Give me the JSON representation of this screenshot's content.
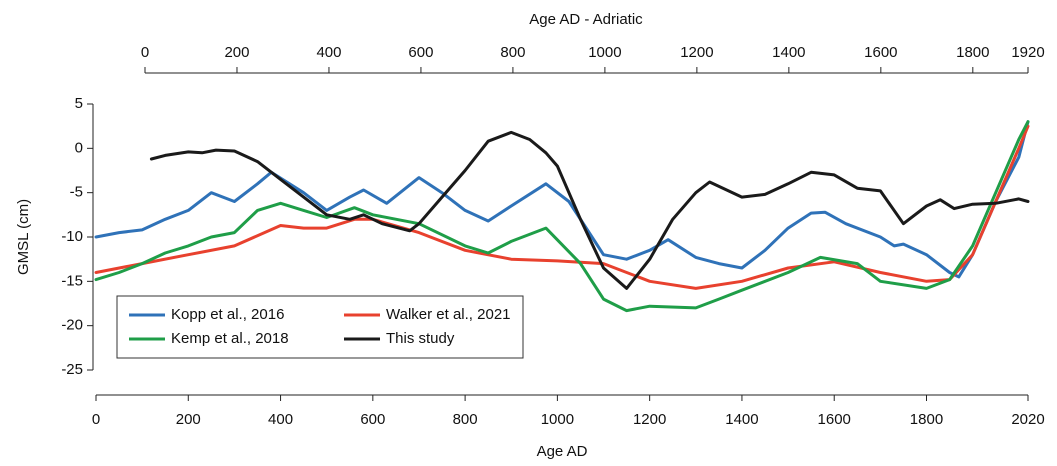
{
  "chart_data": {
    "type": "line",
    "title": "Age AD - Adriatic",
    "xlabel": "Age AD",
    "ylabel": "GMSL (cm)",
    "xlim": [
      0,
      2020
    ],
    "xticks": [
      0,
      200,
      400,
      600,
      800,
      1000,
      1200,
      1400,
      1600,
      1800,
      2020
    ],
    "x2lim": [
      0,
      1920
    ],
    "x2ticks": [
      0,
      200,
      400,
      600,
      800,
      1000,
      1200,
      1400,
      1600,
      1800,
      1920
    ],
    "ylim": [
      -25,
      5
    ],
    "yticks": [
      -25,
      -20,
      -15,
      -10,
      -5,
      0,
      5
    ],
    "legend": "lower left",
    "series": [
      {
        "name": "Kopp et al., 2016",
        "color": "#2f72b8",
        "x": [
          0,
          50,
          100,
          150,
          200,
          250,
          300,
          350,
          380,
          450,
          500,
          550,
          580,
          630,
          700,
          750,
          800,
          850,
          900,
          975,
          1025,
          1075,
          1100,
          1150,
          1200,
          1240,
          1300,
          1350,
          1400,
          1450,
          1500,
          1550,
          1580,
          1625,
          1700,
          1730,
          1750,
          1800,
          1850,
          1870,
          1900,
          1950,
          2000,
          2020
        ],
        "values": [
          -10,
          -9.5,
          -9.2,
          -8,
          -7,
          -5,
          -6,
          -4,
          -2.7,
          -5,
          -7,
          -5.5,
          -4.7,
          -6.2,
          -3.3,
          -5,
          -7,
          -8.2,
          -6.5,
          -4,
          -6,
          -10,
          -12,
          -12.5,
          -11.5,
          -10.3,
          -12.3,
          -13,
          -13.5,
          -11.5,
          -9,
          -7.3,
          -7.2,
          -8.5,
          -10,
          -11,
          -10.8,
          -12,
          -14,
          -14.5,
          -12,
          -6,
          -1,
          3
        ]
      },
      {
        "name": "Walker et al., 2021",
        "color": "#e8412e",
        "x": [
          0,
          100,
          200,
          300,
          400,
          450,
          500,
          560,
          600,
          700,
          800,
          900,
          1000,
          1100,
          1200,
          1300,
          1400,
          1500,
          1600,
          1700,
          1800,
          1850,
          1900,
          1950,
          2000,
          2020
        ],
        "values": [
          -14,
          -13,
          -12,
          -11,
          -8.7,
          -9,
          -9,
          -8,
          -8,
          -9.5,
          -11.5,
          -12.5,
          -12.7,
          -13,
          -15,
          -15.8,
          -15,
          -13.5,
          -12.8,
          -14,
          -15,
          -14.8,
          -12,
          -6,
          0,
          2.5
        ]
      },
      {
        "name": "Kemp et al., 2018",
        "color": "#1f9e48",
        "x": [
          0,
          50,
          100,
          150,
          200,
          250,
          300,
          350,
          400,
          450,
          500,
          560,
          600,
          700,
          800,
          850,
          900,
          975,
          1050,
          1100,
          1150,
          1200,
          1300,
          1350,
          1400,
          1500,
          1570,
          1650,
          1700,
          1800,
          1850,
          1900,
          1950,
          2000,
          2020
        ],
        "values": [
          -14.8,
          -14,
          -13,
          -11.8,
          -11,
          -10,
          -9.5,
          -7,
          -6.2,
          -7,
          -7.8,
          -6.7,
          -7.5,
          -8.5,
          -11,
          -11.8,
          -10.5,
          -9,
          -13,
          -17,
          -18.3,
          -17.8,
          -18,
          -17,
          -16,
          -14,
          -12.3,
          -13,
          -15,
          -15.8,
          -14.8,
          -11,
          -5,
          1,
          3
        ]
      },
      {
        "name": "This study",
        "color": "#1a1a1a",
        "x": [
          120,
          150,
          200,
          230,
          260,
          300,
          350,
          400,
          450,
          500,
          550,
          580,
          620,
          680,
          700,
          750,
          800,
          850,
          900,
          940,
          975,
          1000,
          1050,
          1100,
          1150,
          1200,
          1250,
          1300,
          1330,
          1400,
          1450,
          1500,
          1550,
          1600,
          1650,
          1700,
          1750,
          1800,
          1830,
          1860,
          1900,
          1950,
          2000,
          2020
        ],
        "values": [
          -1.2,
          -0.8,
          -0.4,
          -0.5,
          -0.2,
          -0.3,
          -1.5,
          -3.5,
          -5.5,
          -7.5,
          -8,
          -7.5,
          -8.5,
          -9.3,
          -8.5,
          -5.5,
          -2.5,
          0.8,
          1.8,
          1,
          -0.5,
          -2,
          -8,
          -13.5,
          -15.8,
          -12.5,
          -8,
          -5,
          -3.8,
          -5.5,
          -5.2,
          -4,
          -2.7,
          -3,
          -4.5,
          -4.8,
          -8.5,
          -6.5,
          -5.8,
          -6.8,
          -6.3,
          -6.2,
          -5.7,
          -6
        ]
      }
    ]
  }
}
